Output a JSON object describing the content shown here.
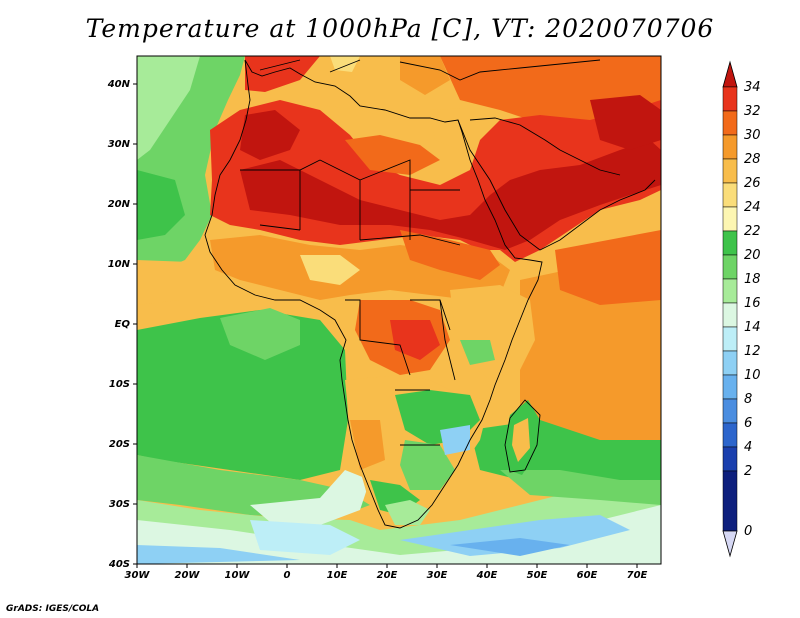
{
  "title": "Temperature at 1000hPa [C], VT: 2020070706",
  "credit": "GrADS: IGES/COLA",
  "map": {
    "lon_range": [
      -30,
      75
    ],
    "lat_range": [
      -40,
      45
    ],
    "x_ticks": [
      "30W",
      "20W",
      "10W",
      "0",
      "10E",
      "20E",
      "30E",
      "40E",
      "50E",
      "60E",
      "70E"
    ],
    "y_ticks": [
      "40S",
      "30S",
      "20S",
      "10S",
      "EQ",
      "10N",
      "20N",
      "30N",
      "40N"
    ],
    "variable": "Temperature at 1000hPa",
    "units": "C",
    "valid_time": "2020070706"
  },
  "colorbar": {
    "labels": [
      "34",
      "32",
      "30",
      "28",
      "26",
      "24",
      "22",
      "20",
      "18",
      "16",
      "14",
      "12",
      "10",
      "8",
      "6",
      "4",
      "2",
      "0"
    ],
    "colors": [
      "#ffffff",
      "#ffffff"
    ]
  },
  "palette": {
    "t34": "#c1150f",
    "t32": "#e8341c",
    "t30": "#f26a1a",
    "t28": "#f59a2b",
    "t26": "#f8bd4b",
    "t24": "#fadd7a",
    "t22": "#fdf6b2",
    "t20": "#3ec34a",
    "t18": "#6ed466",
    "t16": "#a7eb99",
    "t14": "#dcf7e2",
    "t12": "#bdeef7",
    "t10": "#8ed0f4",
    "t8": "#68b1ee",
    "t6": "#4a8de0",
    "t4": "#2c65cc",
    "t2": "#1a3fae",
    "t0": "#0d1f7d",
    "below": "#d6d8f4"
  }
}
